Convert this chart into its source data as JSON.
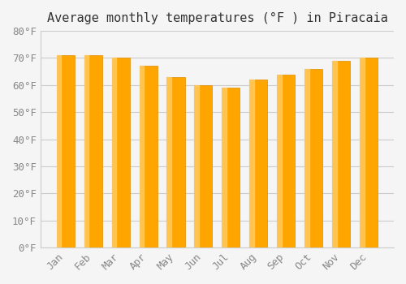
{
  "months": [
    "Jan",
    "Feb",
    "Mar",
    "Apr",
    "May",
    "Jun",
    "Jul",
    "Aug",
    "Sep",
    "Oct",
    "Nov",
    "Dec"
  ],
  "values": [
    71,
    71,
    70,
    67,
    63,
    60,
    59,
    62,
    64,
    66,
    69,
    70
  ],
  "bar_color_main": "#FFA500",
  "bar_color_light": "#FFD070",
  "bar_color_dark": "#E08C00",
  "title": "Average monthly temperatures (°F ) in Piracaia",
  "ylim": [
    0,
    80
  ],
  "yticks": [
    0,
    10,
    20,
    30,
    40,
    50,
    60,
    70,
    80
  ],
  "background_color": "#f5f5f5",
  "grid_color": "#cccccc",
  "title_fontsize": 11,
  "tick_fontsize": 9
}
